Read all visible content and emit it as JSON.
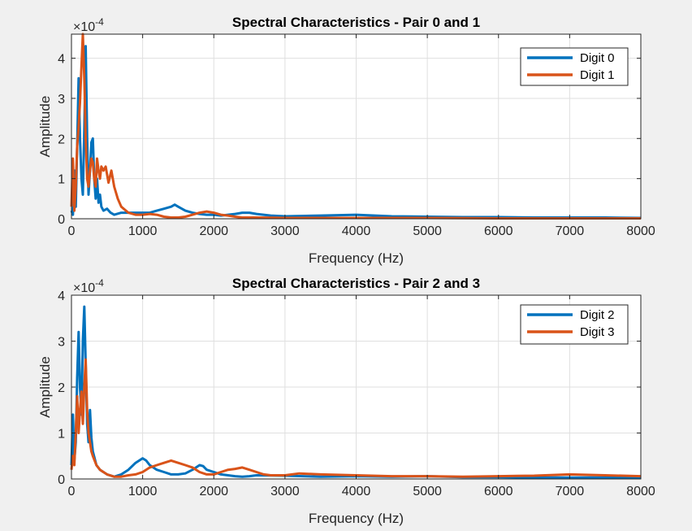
{
  "chart_data": [
    {
      "type": "line",
      "title": "Spectral Characteristics - Pair 0 and 1",
      "xlabel": "Frequency (Hz)",
      "ylabel": "Amplitude",
      "exponent_base": "×10",
      "exponent_power": "-4",
      "xlim": [
        0,
        8000
      ],
      "ylim": [
        0,
        4.6
      ],
      "xticks": [
        "0",
        "1000",
        "2000",
        "3000",
        "4000",
        "5000",
        "6000",
        "7000",
        "8000"
      ],
      "yticks": [
        "0",
        "1",
        "2",
        "3",
        "4"
      ],
      "grid": true,
      "legend_position": "top-right",
      "series": [
        {
          "name": "Digit 0",
          "color": "#0072BD",
          "x": [
            0,
            20,
            40,
            60,
            80,
            100,
            120,
            140,
            160,
            180,
            200,
            220,
            240,
            260,
            280,
            300,
            320,
            340,
            360,
            380,
            400,
            420,
            450,
            500,
            550,
            600,
            700,
            800,
            900,
            1000,
            1100,
            1200,
            1300,
            1400,
            1450,
            1500,
            1600,
            1700,
            1800,
            1900,
            2000,
            2100,
            2200,
            2300,
            2400,
            2500,
            2600,
            2700,
            2800,
            3000,
            3500,
            4000,
            4500,
            5000,
            5500,
            6000,
            6500,
            7000,
            7500,
            8000
          ],
          "y": [
            0.2,
            0.1,
            1.2,
            0.3,
            1.8,
            3.5,
            2.0,
            1.0,
            0.6,
            2.2,
            4.3,
            2.0,
            0.6,
            1.2,
            1.9,
            2.0,
            1.0,
            0.5,
            1.0,
            0.4,
            0.6,
            0.3,
            0.2,
            0.25,
            0.15,
            0.1,
            0.15,
            0.15,
            0.15,
            0.15,
            0.15,
            0.2,
            0.25,
            0.3,
            0.35,
            0.3,
            0.2,
            0.15,
            0.12,
            0.1,
            0.1,
            0.08,
            0.1,
            0.12,
            0.15,
            0.15,
            0.12,
            0.1,
            0.08,
            0.06,
            0.08,
            0.1,
            0.06,
            0.05,
            0.04,
            0.04,
            0.03,
            0.03,
            0.03,
            0.02
          ]
        },
        {
          "name": "Digit 1",
          "color": "#D95319",
          "x": [
            0,
            20,
            40,
            60,
            80,
            100,
            120,
            140,
            160,
            180,
            200,
            220,
            240,
            260,
            280,
            300,
            320,
            340,
            360,
            380,
            400,
            420,
            450,
            480,
            520,
            560,
            600,
            650,
            700,
            800,
            900,
            1000,
            1100,
            1200,
            1300,
            1400,
            1500,
            1600,
            1700,
            1800,
            1900,
            2000,
            2100,
            2200,
            2300,
            2400,
            2600,
            3000,
            3500,
            4000,
            5000,
            6000,
            7000,
            8000
          ],
          "y": [
            0.3,
            1.5,
            0.2,
            0.8,
            1.8,
            2.3,
            2.9,
            3.8,
            4.6,
            3.5,
            2.0,
            1.0,
            0.8,
            1.2,
            1.5,
            1.4,
            1.0,
            0.8,
            1.5,
            1.2,
            1.0,
            1.3,
            1.2,
            1.3,
            0.9,
            1.2,
            0.8,
            0.5,
            0.3,
            0.15,
            0.1,
            0.1,
            0.12,
            0.1,
            0.05,
            0.03,
            0.03,
            0.05,
            0.1,
            0.15,
            0.18,
            0.15,
            0.1,
            0.08,
            0.05,
            0.03,
            0.03,
            0.02,
            0.02,
            0.02,
            0.02,
            0.01,
            0.01,
            0.01
          ]
        }
      ]
    },
    {
      "type": "line",
      "title": "Spectral Characteristics - Pair 2 and 3",
      "xlabel": "Frequency (Hz)",
      "ylabel": "Amplitude",
      "exponent_base": "×10",
      "exponent_power": "-4",
      "xlim": [
        0,
        8000
      ],
      "ylim": [
        0,
        4
      ],
      "xticks": [
        "0",
        "1000",
        "2000",
        "3000",
        "4000",
        "5000",
        "6000",
        "7000",
        "8000"
      ],
      "yticks": [
        "0",
        "1",
        "2",
        "3",
        "4"
      ],
      "grid": true,
      "legend_position": "top-right",
      "series": [
        {
          "name": "Digit 2",
          "color": "#0072BD",
          "x": [
            0,
            20,
            40,
            60,
            80,
            100,
            120,
            140,
            160,
            180,
            200,
            220,
            240,
            260,
            280,
            300,
            350,
            400,
            500,
            600,
            700,
            800,
            900,
            1000,
            1050,
            1100,
            1200,
            1300,
            1400,
            1500,
            1600,
            1700,
            1800,
            1850,
            1900,
            2000,
            2100,
            2200,
            2300,
            2400,
            2500,
            2600,
            3000,
            3500,
            4000,
            4500,
            5000,
            5500,
            6000,
            6500,
            7000,
            7500,
            8000
          ],
          "y": [
            0.3,
            1.4,
            0.4,
            0.8,
            2.2,
            3.2,
            2.0,
            1.4,
            3.0,
            3.75,
            2.5,
            1.2,
            0.8,
            1.5,
            0.9,
            0.6,
            0.3,
            0.2,
            0.1,
            0.05,
            0.1,
            0.2,
            0.35,
            0.45,
            0.4,
            0.3,
            0.2,
            0.15,
            0.1,
            0.1,
            0.12,
            0.2,
            0.3,
            0.28,
            0.2,
            0.15,
            0.1,
            0.08,
            0.06,
            0.05,
            0.06,
            0.08,
            0.07,
            0.05,
            0.06,
            0.05,
            0.06,
            0.04,
            0.04,
            0.03,
            0.03,
            0.03,
            0.03
          ]
        },
        {
          "name": "Digit 3",
          "color": "#D95319",
          "x": [
            0,
            20,
            40,
            60,
            80,
            100,
            120,
            140,
            160,
            180,
            200,
            220,
            240,
            260,
            280,
            300,
            350,
            400,
            500,
            600,
            700,
            800,
            900,
            1000,
            1100,
            1200,
            1300,
            1400,
            1500,
            1600,
            1700,
            1800,
            1900,
            2000,
            2100,
            2200,
            2300,
            2400,
            2500,
            2600,
            2700,
            2800,
            3000,
            3200,
            3500,
            4000,
            4500,
            5000,
            5500,
            6000,
            6500,
            7000,
            7500,
            8000
          ],
          "y": [
            0.2,
            0.5,
            0.3,
            1.0,
            1.8,
            1.0,
            1.5,
            1.9,
            1.2,
            2.0,
            2.6,
            1.5,
            1.0,
            0.8,
            0.6,
            0.5,
            0.3,
            0.2,
            0.1,
            0.05,
            0.05,
            0.08,
            0.1,
            0.15,
            0.25,
            0.3,
            0.35,
            0.4,
            0.35,
            0.3,
            0.25,
            0.15,
            0.1,
            0.1,
            0.15,
            0.2,
            0.22,
            0.25,
            0.2,
            0.15,
            0.1,
            0.08,
            0.08,
            0.12,
            0.1,
            0.08,
            0.06,
            0.06,
            0.05,
            0.06,
            0.07,
            0.1,
            0.08,
            0.06
          ]
        }
      ]
    }
  ]
}
